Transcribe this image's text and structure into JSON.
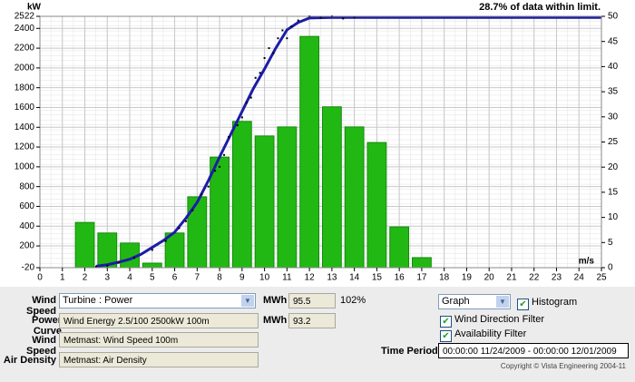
{
  "chart_data": {
    "type": "histogram",
    "title": "28.7% of data within limit.",
    "ylabel": "kW",
    "xlabel": "m/s",
    "xlim": [
      0,
      25
    ],
    "xticks": [
      0,
      1,
      2,
      3,
      4,
      5,
      6,
      7,
      8,
      9,
      10,
      11,
      12,
      13,
      14,
      15,
      16,
      17,
      18,
      19,
      20,
      21,
      22,
      23,
      24,
      25
    ],
    "ylim": [
      -20,
      2522
    ],
    "yticks": [
      -20,
      200,
      400,
      600,
      800,
      1000,
      1200,
      1400,
      1600,
      1800,
      2000,
      2200,
      2400,
      2522
    ],
    "y2lim": [
      0,
      50
    ],
    "y2ticks": [
      0,
      5,
      10,
      15,
      20,
      25,
      30,
      35,
      40,
      45,
      50
    ],
    "grid": true,
    "series": [
      {
        "type": "histogram",
        "axis": "y2",
        "color": "#22b814",
        "bins": [
          0.5,
          1.5,
          2.5,
          3.5,
          4.5,
          5.5,
          6.5,
          7.5,
          8.5,
          9.5,
          10.5,
          11.5,
          12.5,
          13.5,
          14.5,
          15.5,
          16.5,
          17.5,
          18.5,
          19.5,
          20.5,
          21.5,
          22.5,
          23.5,
          24.5
        ],
        "values": [
          0,
          9.0,
          6.9,
          4.9,
          0.9,
          6.9,
          14.1,
          22.0,
          29.1,
          26.2,
          28.0,
          46.0,
          32.0,
          28.0,
          24.9,
          8.1,
          2.0,
          0,
          0,
          0,
          0,
          0,
          0,
          0
        ]
      },
      {
        "type": "line",
        "color": "#1c1ca8",
        "x": [
          2.5,
          3,
          3.5,
          4,
          4.5,
          5,
          5.5,
          6,
          6.5,
          7,
          7.5,
          8,
          8.5,
          9,
          9.5,
          10,
          10.5,
          11,
          11.5,
          12,
          13,
          15,
          20,
          25
        ],
        "values": [
          -5,
          10,
          35,
          65,
          115,
          185,
          255,
          340,
          480,
          640,
          860,
          1100,
          1330,
          1560,
          1790,
          1990,
          2200,
          2385,
          2460,
          2505,
          2510,
          2510,
          2510,
          2510
        ]
      },
      {
        "type": "scatter",
        "color": "#000000",
        "x": [
          2.5,
          3,
          3.5,
          4.2,
          5,
          5.6,
          6.2,
          6.5,
          6.8,
          7.2,
          7.5,
          7.8,
          8,
          8.2,
          8.4,
          8.8,
          9,
          9.2,
          9.4,
          9.6,
          9.8,
          10,
          10.2,
          10.4,
          10.6,
          10.8,
          11,
          11.2,
          11.5,
          12,
          12.5,
          13,
          13.5,
          14
        ],
        "values": [
          -10,
          0,
          30,
          80,
          160,
          250,
          380,
          450,
          560,
          720,
          800,
          960,
          1000,
          1120,
          1300,
          1420,
          1500,
          1650,
          1700,
          1900,
          1950,
          2100,
          2200,
          2150,
          2300,
          2380,
          2300,
          2420,
          2480,
          2522,
          2510,
          2522,
          2500,
          2515
        ]
      }
    ]
  },
  "controls": {
    "wind_speed_label": "Wind Speed",
    "wind_speed_select": "Turbine : Power",
    "mwh_label_1": "MWh",
    "mwh_1": "95.5",
    "ratio": "102%",
    "power_curve_label": "Power Curve",
    "power_curve": "Wind Energy 2.5/100 2500kW 100m",
    "mwh_label_2": "MWh",
    "mwh_2": "93.2",
    "wind_speed_label_2": "Wind Speed",
    "wind_speed_source": "Metmast: Wind Speed 100m",
    "air_density_label": "Air Density",
    "air_density": "Metmast: Air Density",
    "view_select": "Graph",
    "histogram": {
      "label": "Histogram",
      "checked": true
    },
    "wind_direction_filter": {
      "label": "Wind Direction Filter",
      "checked": true
    },
    "availability_filter": {
      "label": "Availability Filter",
      "checked": true
    },
    "time_period_label": "Time Period",
    "time_period": "00:00:00 11/24/2009 - 00:00:00 12/01/2009",
    "copyright": "Copyright © Vista Engineering 2004-11"
  }
}
